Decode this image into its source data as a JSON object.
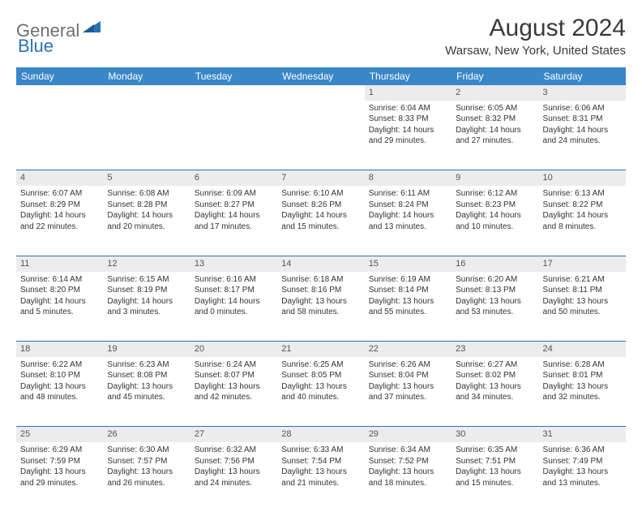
{
  "logo": {
    "text1": "General",
    "text2": "Blue"
  },
  "title": "August 2024",
  "location": "Warsaw, New York, United States",
  "colors": {
    "header_bg": "#3a87c8",
    "header_fg": "#ffffff",
    "row_sep": "#2a72b5",
    "daynum_bg": "#ececec",
    "logo_gray": "#6e6e6e",
    "logo_blue": "#2a72b5"
  },
  "dayHeaders": [
    "Sunday",
    "Monday",
    "Tuesday",
    "Wednesday",
    "Thursday",
    "Friday",
    "Saturday"
  ],
  "weeks": [
    [
      null,
      null,
      null,
      null,
      {
        "n": "1",
        "sr": "6:04 AM",
        "ss": "8:33 PM",
        "d1": "14 hours",
        "d2": "and 29 minutes."
      },
      {
        "n": "2",
        "sr": "6:05 AM",
        "ss": "8:32 PM",
        "d1": "14 hours",
        "d2": "and 27 minutes."
      },
      {
        "n": "3",
        "sr": "6:06 AM",
        "ss": "8:31 PM",
        "d1": "14 hours",
        "d2": "and 24 minutes."
      }
    ],
    [
      {
        "n": "4",
        "sr": "6:07 AM",
        "ss": "8:29 PM",
        "d1": "14 hours",
        "d2": "and 22 minutes."
      },
      {
        "n": "5",
        "sr": "6:08 AM",
        "ss": "8:28 PM",
        "d1": "14 hours",
        "d2": "and 20 minutes."
      },
      {
        "n": "6",
        "sr": "6:09 AM",
        "ss": "8:27 PM",
        "d1": "14 hours",
        "d2": "and 17 minutes."
      },
      {
        "n": "7",
        "sr": "6:10 AM",
        "ss": "8:26 PM",
        "d1": "14 hours",
        "d2": "and 15 minutes."
      },
      {
        "n": "8",
        "sr": "6:11 AM",
        "ss": "8:24 PM",
        "d1": "14 hours",
        "d2": "and 13 minutes."
      },
      {
        "n": "9",
        "sr": "6:12 AM",
        "ss": "8:23 PM",
        "d1": "14 hours",
        "d2": "and 10 minutes."
      },
      {
        "n": "10",
        "sr": "6:13 AM",
        "ss": "8:22 PM",
        "d1": "14 hours",
        "d2": "and 8 minutes."
      }
    ],
    [
      {
        "n": "11",
        "sr": "6:14 AM",
        "ss": "8:20 PM",
        "d1": "14 hours",
        "d2": "and 5 minutes."
      },
      {
        "n": "12",
        "sr": "6:15 AM",
        "ss": "8:19 PM",
        "d1": "14 hours",
        "d2": "and 3 minutes."
      },
      {
        "n": "13",
        "sr": "6:16 AM",
        "ss": "8:17 PM",
        "d1": "14 hours",
        "d2": "and 0 minutes."
      },
      {
        "n": "14",
        "sr": "6:18 AM",
        "ss": "8:16 PM",
        "d1": "13 hours",
        "d2": "and 58 minutes."
      },
      {
        "n": "15",
        "sr": "6:19 AM",
        "ss": "8:14 PM",
        "d1": "13 hours",
        "d2": "and 55 minutes."
      },
      {
        "n": "16",
        "sr": "6:20 AM",
        "ss": "8:13 PM",
        "d1": "13 hours",
        "d2": "and 53 minutes."
      },
      {
        "n": "17",
        "sr": "6:21 AM",
        "ss": "8:11 PM",
        "d1": "13 hours",
        "d2": "and 50 minutes."
      }
    ],
    [
      {
        "n": "18",
        "sr": "6:22 AM",
        "ss": "8:10 PM",
        "d1": "13 hours",
        "d2": "and 48 minutes."
      },
      {
        "n": "19",
        "sr": "6:23 AM",
        "ss": "8:08 PM",
        "d1": "13 hours",
        "d2": "and 45 minutes."
      },
      {
        "n": "20",
        "sr": "6:24 AM",
        "ss": "8:07 PM",
        "d1": "13 hours",
        "d2": "and 42 minutes."
      },
      {
        "n": "21",
        "sr": "6:25 AM",
        "ss": "8:05 PM",
        "d1": "13 hours",
        "d2": "and 40 minutes."
      },
      {
        "n": "22",
        "sr": "6:26 AM",
        "ss": "8:04 PM",
        "d1": "13 hours",
        "d2": "and 37 minutes."
      },
      {
        "n": "23",
        "sr": "6:27 AM",
        "ss": "8:02 PM",
        "d1": "13 hours",
        "d2": "and 34 minutes."
      },
      {
        "n": "24",
        "sr": "6:28 AM",
        "ss": "8:01 PM",
        "d1": "13 hours",
        "d2": "and 32 minutes."
      }
    ],
    [
      {
        "n": "25",
        "sr": "6:29 AM",
        "ss": "7:59 PM",
        "d1": "13 hours",
        "d2": "and 29 minutes."
      },
      {
        "n": "26",
        "sr": "6:30 AM",
        "ss": "7:57 PM",
        "d1": "13 hours",
        "d2": "and 26 minutes."
      },
      {
        "n": "27",
        "sr": "6:32 AM",
        "ss": "7:56 PM",
        "d1": "13 hours",
        "d2": "and 24 minutes."
      },
      {
        "n": "28",
        "sr": "6:33 AM",
        "ss": "7:54 PM",
        "d1": "13 hours",
        "d2": "and 21 minutes."
      },
      {
        "n": "29",
        "sr": "6:34 AM",
        "ss": "7:52 PM",
        "d1": "13 hours",
        "d2": "and 18 minutes."
      },
      {
        "n": "30",
        "sr": "6:35 AM",
        "ss": "7:51 PM",
        "d1": "13 hours",
        "d2": "and 15 minutes."
      },
      {
        "n": "31",
        "sr": "6:36 AM",
        "ss": "7:49 PM",
        "d1": "13 hours",
        "d2": "and 13 minutes."
      }
    ]
  ]
}
